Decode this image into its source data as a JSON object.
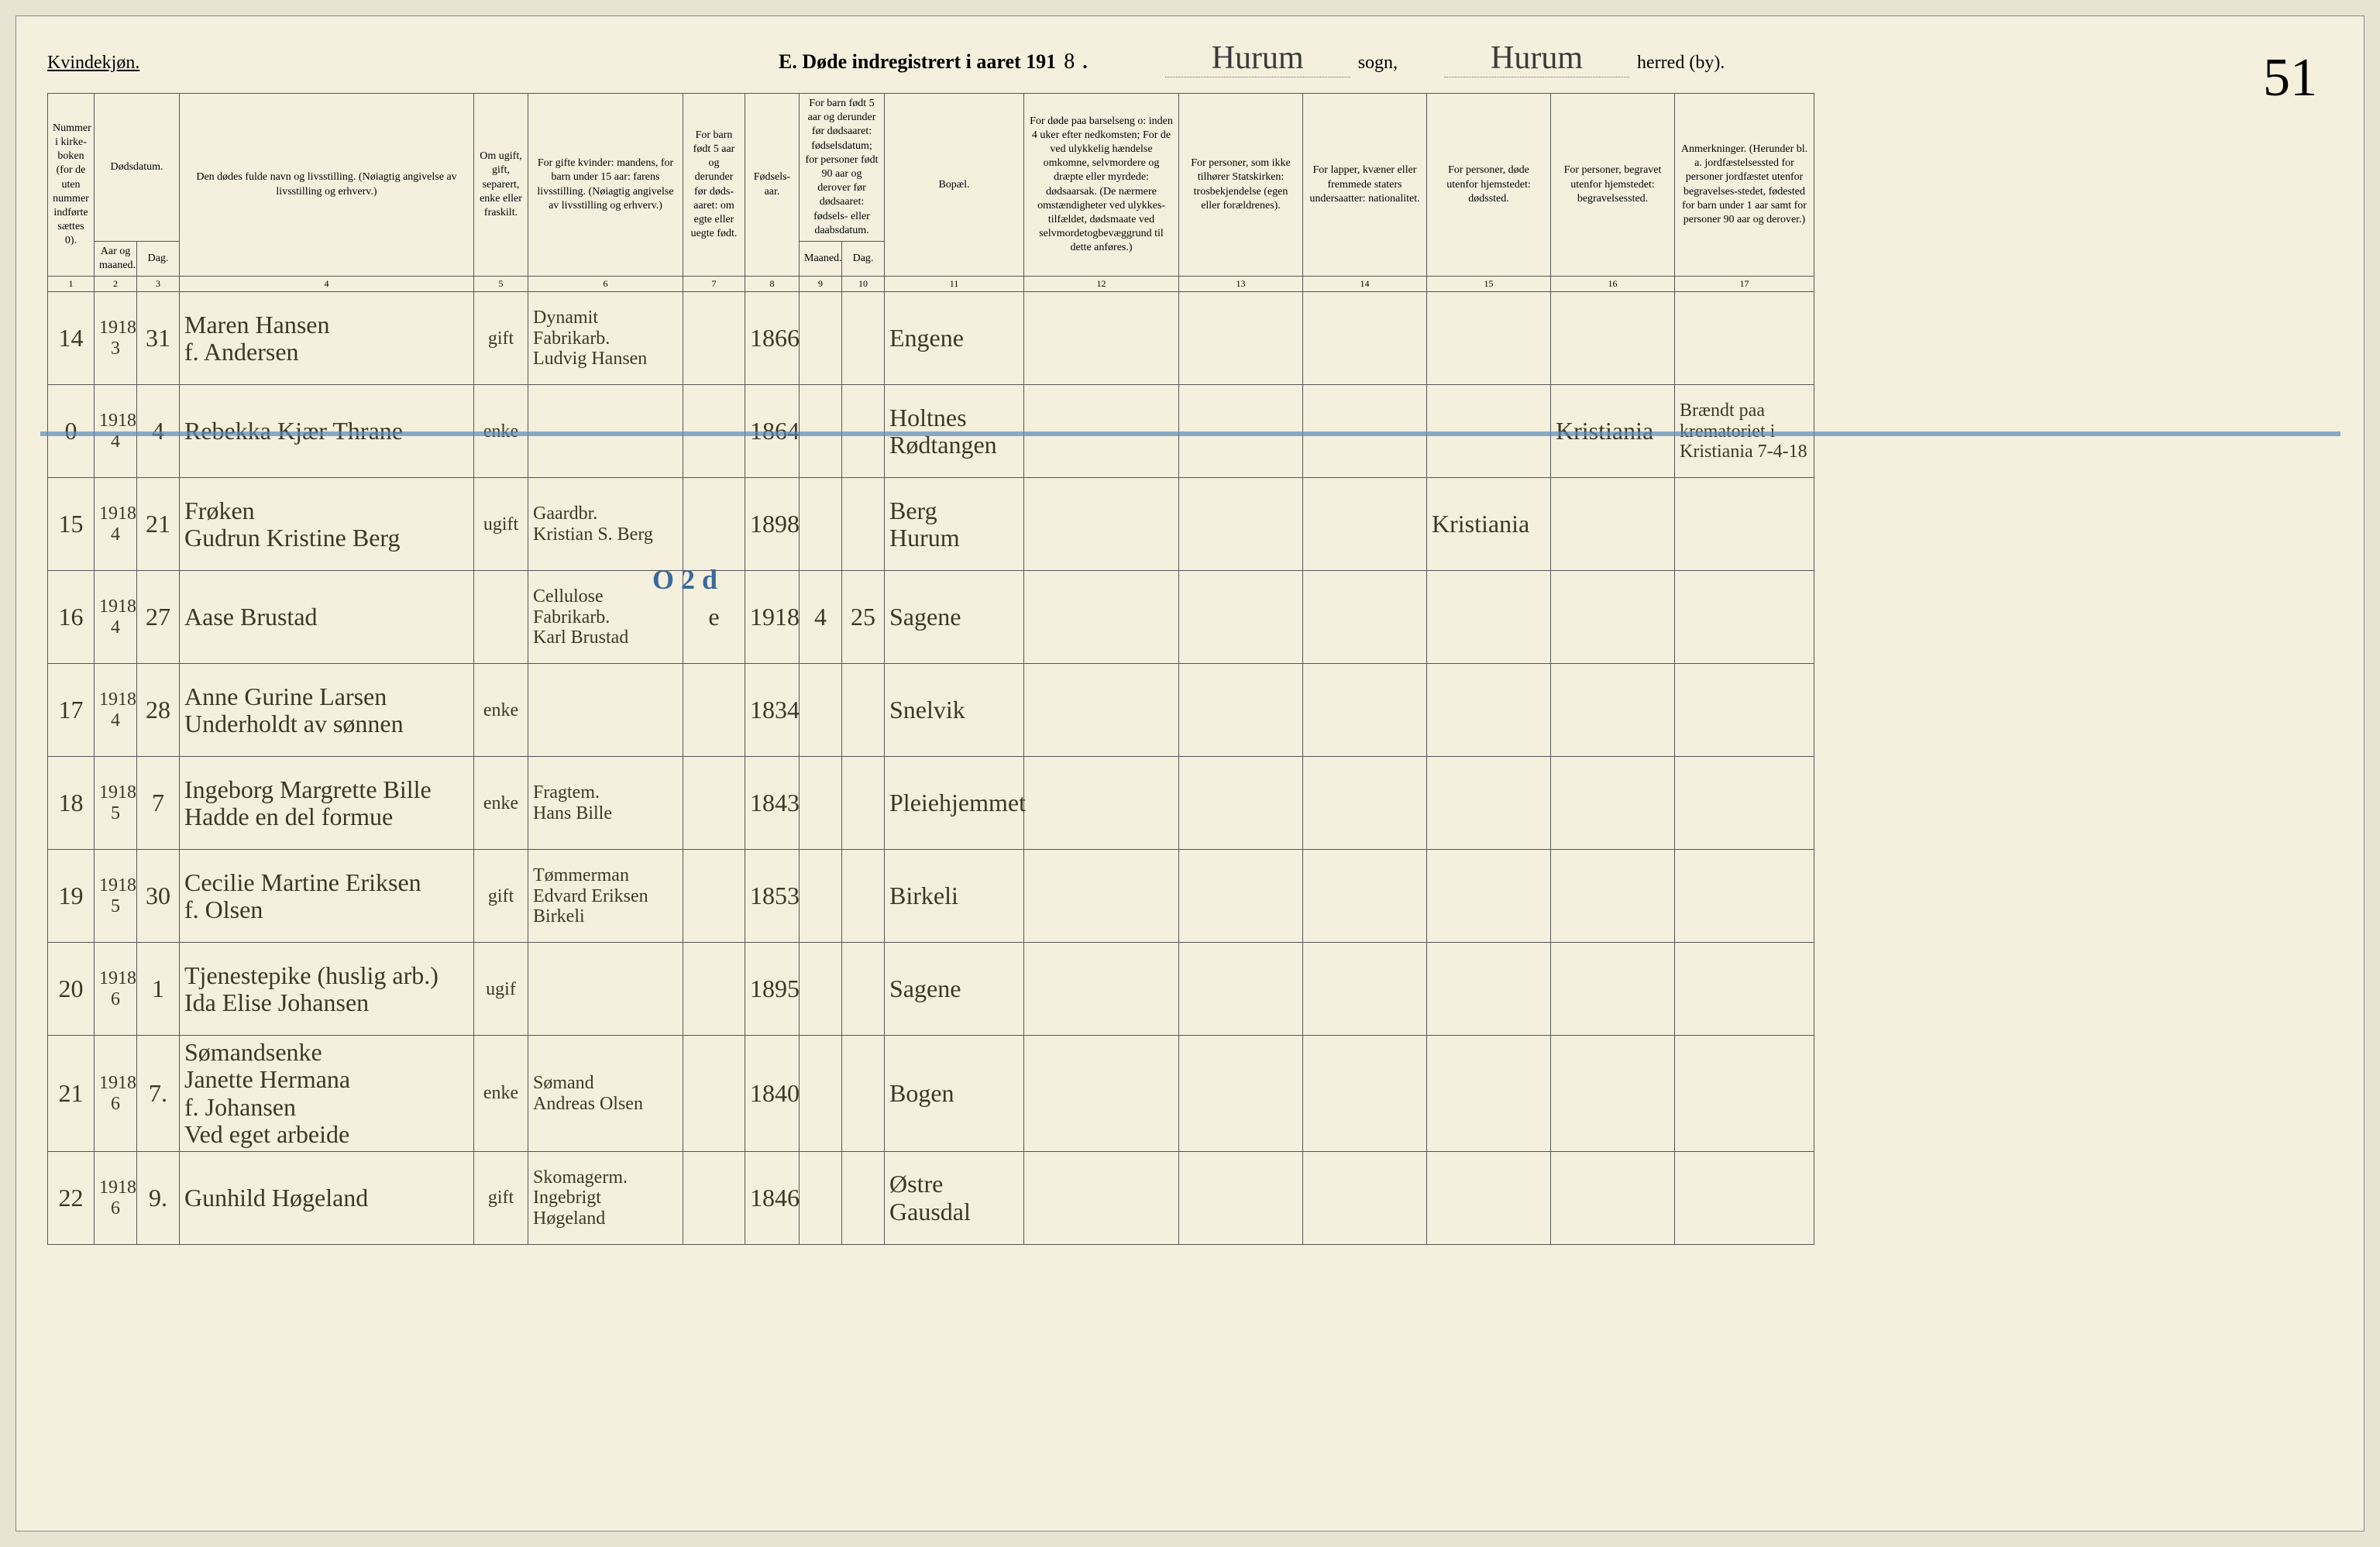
{
  "header": {
    "kvindekjon": "Kvindekjøn.",
    "title_prefix": "E.  Døde indregistrert i aaret 191",
    "year_suffix": "8",
    "period": ".",
    "sogn_value": "Hurum",
    "sogn_label": "sogn,",
    "herred_value": "Hurum",
    "herred_label": "herred (by).",
    "page_number": "51"
  },
  "columns": {
    "c1": "Nummer i kirke-boken (for de uten nummer indførte sættes 0).",
    "c2_top": "Dødsdatum.",
    "c2a": "Aar og maaned.",
    "c2b": "Dag.",
    "c4": "Den dødes fulde navn og livsstilling.\n(Nøiagtig angivelse av livsstilling og erhverv.)",
    "c5": "Om ugift, gift, separert, enke eller fraskilt.",
    "c6": "For gifte kvinder: mandens,\nfor barn under 15 aar: farens livsstilling.\n(Nøiagtig angivelse av livsstilling og erhverv.)",
    "c7": "For barn født 5 aar og derunder før døds-aaret: om egte eller uegte født.",
    "c8": "Fødsels-aar.",
    "c9_top": "For barn født 5 aar og derunder før dødsaaret: fødselsdatum; for personer født 90 aar og derover før dødsaaret: fødsels- eller daabsdatum.",
    "c9a": "Maaned.",
    "c9b": "Dag.",
    "c11": "Bopæl.",
    "c12": "For døde paa barselseng o: inden 4 uker efter nedkomsten; For de ved ulykkelig hændelse omkomne, selvmordere og dræpte eller myrdede: dødsaarsak. (De nærmere omstændigheter ved ulykkes-tilfældet, dødsmaate ved selvmordetogbevæggrund til dette anføres.)",
    "c13": "For personer, som ikke tilhører Statskirken: trosbekjendelse (egen eller forældrenes).",
    "c14": "For lapper, kvæner eller fremmede staters undersaatter: nationalitet.",
    "c15": "For personer, døde utenfor hjemstedet: dødssted.",
    "c16": "For personer, begravet utenfor hjemstedet: begravelsessted.",
    "c17": "Anmerkninger.\n(Herunder bl. a. jordfæstelsessted for personer jordfæstet utenfor begravelses-stedet, fødested for barn under 1 aar samt for personer 90 aar og derover.)"
  },
  "colnums": [
    "1",
    "2",
    "3",
    "4",
    "5",
    "6",
    "7",
    "8",
    "9",
    "10",
    "11",
    "12",
    "13",
    "14",
    "15",
    "16",
    "17"
  ],
  "rows": [
    {
      "num": "14",
      "aar": "1918\n3",
      "dag": "31",
      "navn": "Maren Hansen\nf. Andersen",
      "ugift": "gift",
      "mand": "Dynamit\nFabrikarb.\nLudvig Hansen",
      "fodaar": "1866",
      "bopael": "Engene"
    },
    {
      "num": "0",
      "aar": "1918\n4",
      "dag": "4",
      "navn": "Rebekka Kjær Thrane",
      "ugift": "enke",
      "fodaar": "1864",
      "bopael": "Holtnes\nRødtangen",
      "begrav": "Kristiania",
      "anmerk": "Brændt paa krematoriet i Kristiania 7-4-18",
      "strike": true
    },
    {
      "num": "15",
      "aar": "1918\n4",
      "dag": "21",
      "navn": "Frøken\nGudrun Kristine Berg",
      "ugift": "ugift",
      "mand": "Gaardbr.\nKristian S. Berg",
      "fodaar": "1898",
      "bopael": "Berg\nHurum",
      "dodsted": "Kristiania"
    },
    {
      "num": "16",
      "aar": "1918\n4",
      "dag": "27",
      "navn": "Aase Brustad",
      "ugift": "",
      "mand": "Cellulose\nFabrikarb.\nKarl Brustad",
      "barn5": "e",
      "fodaar": "1918",
      "fodmd": "4",
      "fodday": "25",
      "bopael": "Sagene",
      "blue_annot": "O 2 d"
    },
    {
      "num": "17",
      "aar": "1918\n4",
      "dag": "28",
      "navn": "Anne Gurine Larsen\nUnderholdt av sønnen",
      "ugift": "enke",
      "fodaar": "1834",
      "bopael": "Snelvik"
    },
    {
      "num": "18",
      "aar": "1918\n5",
      "dag": "7",
      "navn": "Ingeborg Margrette Bille\nHadde en del formue",
      "ugift": "enke",
      "mand": "Fragtem.\nHans Bille",
      "fodaar": "1843",
      "bopael": "Pleiehjemmet"
    },
    {
      "num": "19",
      "aar": "1918\n5",
      "dag": "30",
      "navn": "Cecilie Martine Eriksen\nf. Olsen",
      "ugift": "gift",
      "mand": "Tømmerman\nEdvard Eriksen\nBirkeli",
      "fodaar": "1853",
      "bopael": "Birkeli"
    },
    {
      "num": "20",
      "aar": "1918\n6",
      "dag": "1",
      "navn": "Tjenestepike (huslig arb.)\nIda Elise Johansen",
      "ugift": "ugif",
      "fodaar": "1895",
      "bopael": "Sagene"
    },
    {
      "num": "21",
      "aar": "1918\n6",
      "dag": "7.",
      "navn": "Sømandsenke\nJanette Hermana\nf. Johansen\nVed eget arbeide",
      "ugift": "enke",
      "mand": "Sømand\nAndreas Olsen",
      "fodaar": "1840",
      "bopael": "Bogen"
    },
    {
      "num": "22",
      "aar": "1918\n6",
      "dag": "9.",
      "navn": "Gunhild Høgeland",
      "ugift": "gift",
      "mand": "Skomagerm.\nIngebrigt Høgeland",
      "fodaar": "1846",
      "bopael": "Østre\nGausdal"
    }
  ]
}
